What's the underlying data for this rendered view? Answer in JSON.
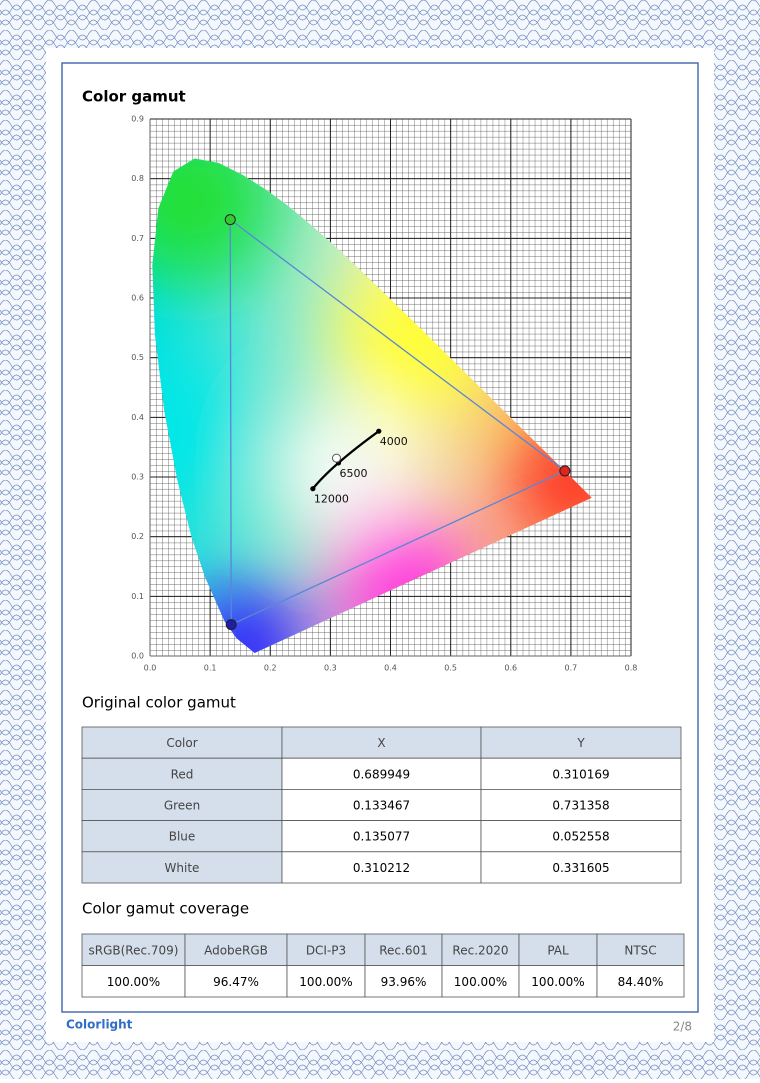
{
  "section_title": "Color gamut",
  "chart_data": {
    "type": "scatter",
    "xlim": [
      0,
      0.8
    ],
    "ylim": [
      0,
      0.9
    ],
    "xticks": [
      {
        "value": 0,
        "label": "0.0"
      },
      0.1,
      0.2,
      0.3,
      0.4,
      0.5,
      0.6,
      0.7,
      0.8
    ],
    "yticks": [
      {
        "value": 0,
        "label": "0.0"
      },
      0.1,
      0.2,
      0.3,
      0.4,
      0.5,
      0.6,
      0.7,
      0.8,
      0.9
    ],
    "grid": true,
    "categories": [
      "Red",
      "Green",
      "Blue",
      "White"
    ],
    "x": [
      0.689949,
      0.133467,
      0.135077,
      0.310212
    ],
    "values": [
      0.310169,
      0.731358,
      0.052558,
      0.331605
    ],
    "colors": [
      "#e3221d",
      "#33cc2e",
      "#1d1fa6",
      "#ffffff"
    ],
    "line_color": "#5a86d6",
    "locus": {
      "labels": [
        4000,
        6500,
        12000
      ],
      "x": [
        0.3805,
        0.3135,
        0.2709
      ],
      "values": [
        0.3768,
        0.3237,
        0.2804
      ]
    }
  },
  "gamut_table": {
    "title": "Original color gamut",
    "header": [
      "Color",
      "X",
      "Y"
    ]
  },
  "coverage_table": {
    "title": "Color gamut coverage",
    "header": [
      "sRGB(Rec.709)",
      "AdobeRGB",
      "DCI-P3",
      "Rec.601",
      "Rec.2020",
      "PAL",
      "NTSC"
    ],
    "rows": [
      [
        "100.00%",
        "96.47%",
        "100.00%",
        "93.96%",
        "100.00%",
        "100.00%",
        "84.40%"
      ]
    ]
  },
  "footer": {
    "brand": "Colorlight",
    "page": "2/8"
  }
}
